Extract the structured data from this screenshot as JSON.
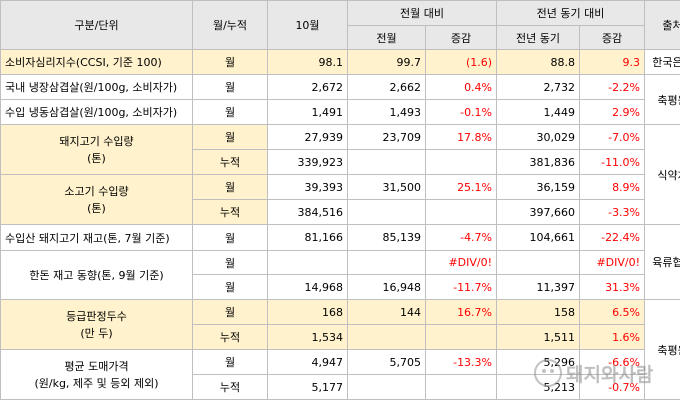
{
  "header": {
    "category": "구분/단위",
    "period": "월/누적",
    "month": "10월",
    "mom_group": "전월 대비",
    "yoy_group": "전년 동기 대비",
    "source": "출처",
    "prev_month": "전월",
    "change": "증감",
    "prev_year": "전년 동기",
    "change2": "증감"
  },
  "rows": [
    {
      "cat": "소비자심리지수(CCSI, 기준 100)",
      "period": "월",
      "month": "98.1",
      "prev_month": "99.7",
      "mom": "(1.6)",
      "prev_year": "88.8",
      "yoy": "9.3"
    },
    {
      "cat": "국내 냉장삼겹살(원/100g, 소비자가)",
      "period": "월",
      "month": "2,672",
      "prev_month": "2,662",
      "mom": "0.4%",
      "prev_year": "2,732",
      "yoy": "-2.2%"
    },
    {
      "cat": "수입 냉동삼겹살(원/100g, 소비자가)",
      "period": "월",
      "month": "1,491",
      "prev_month": "1,493",
      "mom": "-0.1%",
      "prev_year": "1,449",
      "yoy": "2.9%"
    },
    {
      "cat": "돼지고기 수입량",
      "cat2": "(톤)",
      "period": "월",
      "month": "27,939",
      "prev_month": "23,709",
      "mom": "17.8%",
      "prev_year": "30,029",
      "yoy": "-7.0%"
    },
    {
      "period": "누적",
      "month": "339,923",
      "prev_month": "",
      "mom": "",
      "prev_year": "381,836",
      "yoy": "-11.0%"
    },
    {
      "cat": "소고기 수입량",
      "cat2": "(톤)",
      "period": "월",
      "month": "39,393",
      "prev_month": "31,500",
      "mom": "25.1%",
      "prev_year": "36,159",
      "yoy": "8.9%"
    },
    {
      "period": "누적",
      "month": "384,516",
      "prev_month": "",
      "mom": "",
      "prev_year": "397,660",
      "yoy": "-3.3%"
    },
    {
      "cat": "수입산 돼지고기 재고(톤, 7월 기준)",
      "period": "월",
      "month": "81,166",
      "prev_month": "85,139",
      "mom": "-4.7%",
      "prev_year": "104,661",
      "yoy": "-22.4%"
    },
    {
      "cat": "한돈 재고 동향(톤, 9월 기준)",
      "period": "월",
      "month": "",
      "prev_month": "",
      "mom": "#DIV/0!",
      "prev_year": "",
      "yoy": "#DIV/0!"
    },
    {
      "period": "월",
      "month": "14,968",
      "prev_month": "16,948",
      "mom": "-11.7%",
      "prev_year": "11,397",
      "yoy": "31.3%"
    },
    {
      "cat": "등급판정두수",
      "cat2": "(만 두)",
      "period": "월",
      "month": "168",
      "prev_month": "144",
      "mom": "16.7%",
      "prev_year": "158",
      "yoy": "6.5%"
    },
    {
      "period": "누적",
      "month": "1,534",
      "prev_month": "",
      "mom": "",
      "prev_year": "1,511",
      "yoy": "1.6%"
    },
    {
      "cat": "평균 도매가격",
      "cat2": "(원/kg, 제주 및 등외 제외)",
      "period": "월",
      "month": "4,947",
      "prev_month": "5,705",
      "mom": "-13.3%",
      "prev_year": "5,296",
      "yoy": "-6.6%"
    },
    {
      "period": "누적",
      "month": "5,177",
      "prev_month": "",
      "mom": "",
      "prev_year": "5,213",
      "yoy": "-0.7%"
    }
  ],
  "sources": {
    "s1": "한국은행",
    "s2": "축평원",
    "s3": "식약처",
    "s4": "육류협회",
    "s5": "축평원"
  },
  "watermark": "돼지와사람",
  "colors": {
    "highlight": "#fff2cc",
    "header": "#e8e8e8",
    "negative": "#ff0000"
  }
}
